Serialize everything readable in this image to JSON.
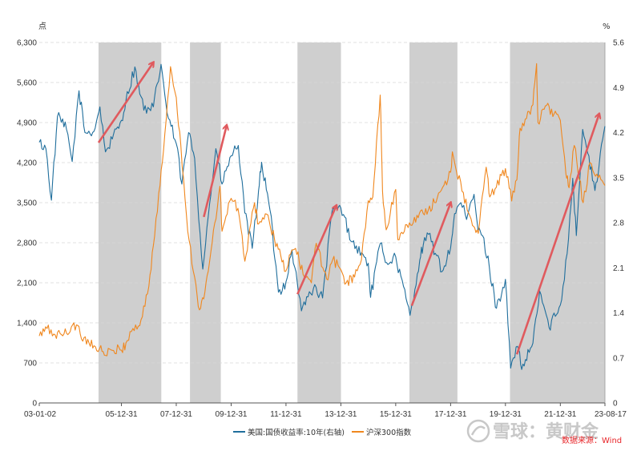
{
  "chart_data": {
    "type": "line",
    "title": "",
    "left_axis": {
      "unit": "点",
      "min": 0,
      "max": 6300,
      "ticks": [
        "0",
        "700",
        "1,400",
        "2,100",
        "2,800",
        "3,500",
        "4,200",
        "4,900",
        "5,600",
        "6,300"
      ]
    },
    "right_axis": {
      "unit": "%",
      "min": 0,
      "max": 5.6,
      "ticks": [
        "0",
        "0.7",
        "1.4",
        "2.1",
        "2.8",
        "3.5",
        "4.2",
        "4.9",
        "5.6"
      ]
    },
    "x_range": [
      "2003-01-02",
      "2023-08-17"
    ],
    "x_ticks": [
      {
        "label": "03-01-02",
        "date": "2003-01-02"
      },
      {
        "label": "05-12-31",
        "date": "2005-12-31"
      },
      {
        "label": "07-12-31",
        "date": "2007-12-31"
      },
      {
        "label": "09-12-31",
        "date": "2009-12-31"
      },
      {
        "label": "11-12-31",
        "date": "2011-12-31"
      },
      {
        "label": "13-12-31",
        "date": "2013-12-31"
      },
      {
        "label": "15-12-31",
        "date": "2015-12-31"
      },
      {
        "label": "17-12-31",
        "date": "2017-12-31"
      },
      {
        "label": "19-12-31",
        "date": "2019-12-31"
      },
      {
        "label": "21-12-31",
        "date": "2021-12-31"
      },
      {
        "label": "23-08-17",
        "date": "2023-08-17"
      }
    ],
    "grid": "horizontal-dashed",
    "legend_position": "bottom",
    "shaded_periods": [
      [
        "2005-03-01",
        "2007-06-15"
      ],
      [
        "2008-07-01",
        "2009-08-15"
      ],
      [
        "2012-06-01",
        "2014-01-01"
      ],
      [
        "2016-07-01",
        "2018-04-01"
      ],
      [
        "2020-03-01",
        "2023-08-17"
      ]
    ],
    "trend_arrows": [
      {
        "from": [
          "2005-03-01",
          4550
        ],
        "to": [
          "2007-03-01",
          5950
        ]
      },
      {
        "from": [
          "2009-01-01",
          3250
        ],
        "to": [
          "2009-11-01",
          4850
        ]
      },
      {
        "from": [
          "2012-06-01",
          1900
        ],
        "to": [
          "2013-11-01",
          3450
        ]
      },
      {
        "from": [
          "2016-08-01",
          1700
        ],
        "to": [
          "2018-01-01",
          3500
        ]
      },
      {
        "from": [
          "2020-06-01",
          850
        ],
        "to": [
          "2023-06-01",
          5050
        ]
      }
    ],
    "series": [
      {
        "name": "美国:国债收益率:10年(右轴)",
        "axis": "right",
        "color": "#1f6e9c",
        "points": [
          [
            "2003-01-02",
            4.05
          ],
          [
            "2003-04-01",
            3.95
          ],
          [
            "2003-06-13",
            3.15
          ],
          [
            "2003-09-01",
            4.45
          ],
          [
            "2003-12-31",
            4.25
          ],
          [
            "2004-03-15",
            3.75
          ],
          [
            "2004-06-14",
            4.85
          ],
          [
            "2004-09-01",
            4.2
          ],
          [
            "2004-12-31",
            4.22
          ],
          [
            "2005-03-20",
            4.6
          ],
          [
            "2005-06-01",
            3.9
          ],
          [
            "2005-09-01",
            4.1
          ],
          [
            "2005-12-31",
            4.39
          ],
          [
            "2006-03-01",
            4.7
          ],
          [
            "2006-06-28",
            5.22
          ],
          [
            "2006-09-01",
            4.8
          ],
          [
            "2006-12-01",
            4.5
          ],
          [
            "2007-03-01",
            4.6
          ],
          [
            "2007-06-12",
            5.26
          ],
          [
            "2007-09-01",
            4.5
          ],
          [
            "2007-12-31",
            4.03
          ],
          [
            "2008-03-15",
            3.4
          ],
          [
            "2008-06-13",
            4.2
          ],
          [
            "2008-09-01",
            3.8
          ],
          [
            "2008-12-18",
            2.08
          ],
          [
            "2009-03-01",
            2.9
          ],
          [
            "2009-06-10",
            3.95
          ],
          [
            "2009-09-01",
            3.4
          ],
          [
            "2009-12-31",
            3.84
          ],
          [
            "2010-04-05",
            4.0
          ],
          [
            "2010-06-30",
            2.95
          ],
          [
            "2010-10-08",
            2.4
          ],
          [
            "2010-12-31",
            3.3
          ],
          [
            "2011-02-09",
            3.74
          ],
          [
            "2011-06-01",
            3.0
          ],
          [
            "2011-09-22",
            1.72
          ],
          [
            "2011-12-31",
            1.88
          ],
          [
            "2012-03-20",
            2.38
          ],
          [
            "2012-07-24",
            1.43
          ],
          [
            "2012-10-01",
            1.65
          ],
          [
            "2012-12-31",
            1.78
          ],
          [
            "2013-05-01",
            1.63
          ],
          [
            "2013-09-05",
            2.98
          ],
          [
            "2013-12-31",
            3.03
          ],
          [
            "2014-06-01",
            2.5
          ],
          [
            "2014-12-31",
            2.17
          ],
          [
            "2015-01-30",
            1.64
          ],
          [
            "2015-06-10",
            2.48
          ],
          [
            "2015-09-01",
            2.18
          ],
          [
            "2015-12-31",
            2.27
          ],
          [
            "2016-07-08",
            1.36
          ],
          [
            "2016-11-15",
            2.22
          ],
          [
            "2016-12-31",
            2.45
          ],
          [
            "2017-03-13",
            2.62
          ],
          [
            "2017-09-07",
            2.04
          ],
          [
            "2017-12-31",
            2.41
          ],
          [
            "2018-02-21",
            2.94
          ],
          [
            "2018-05-17",
            3.11
          ],
          [
            "2018-08-01",
            2.85
          ],
          [
            "2018-11-08",
            3.24
          ],
          [
            "2018-12-31",
            2.69
          ],
          [
            "2019-03-01",
            2.6
          ],
          [
            "2019-06-01",
            2.1
          ],
          [
            "2019-09-03",
            1.47
          ],
          [
            "2019-12-31",
            1.92
          ],
          [
            "2020-03-09",
            0.54
          ],
          [
            "2020-06-08",
            0.88
          ],
          [
            "2020-08-04",
            0.52
          ],
          [
            "2020-12-31",
            0.93
          ],
          [
            "2021-03-31",
            1.74
          ],
          [
            "2021-08-03",
            1.17
          ],
          [
            "2021-12-31",
            1.52
          ],
          [
            "2022-03-31",
            2.32
          ],
          [
            "2022-06-14",
            3.49
          ],
          [
            "2022-08-01",
            2.6
          ],
          [
            "2022-10-24",
            4.25
          ],
          [
            "2022-12-31",
            3.88
          ],
          [
            "2023-04-06",
            3.3
          ],
          [
            "2023-06-01",
            3.7
          ],
          [
            "2023-08-17",
            4.3
          ]
        ]
      },
      {
        "name": "沪深300指数",
        "axis": "left",
        "color": "#f0871e",
        "points": [
          [
            "2003-01-02",
            1170
          ],
          [
            "2003-04-15",
            1300
          ],
          [
            "2003-08-01",
            1190
          ],
          [
            "2003-12-31",
            1220
          ],
          [
            "2004-04-07",
            1400
          ],
          [
            "2004-07-01",
            1200
          ],
          [
            "2004-12-31",
            1000
          ],
          [
            "2005-03-15",
            950
          ],
          [
            "2005-06-03",
            830
          ],
          [
            "2005-09-01",
            920
          ],
          [
            "2005-12-31",
            924
          ],
          [
            "2006-03-01",
            1050
          ],
          [
            "2006-06-01",
            1300
          ],
          [
            "2006-09-01",
            1350
          ],
          [
            "2006-12-31",
            2040
          ],
          [
            "2007-03-01",
            2750
          ],
          [
            "2007-05-29",
            3800
          ],
          [
            "2007-08-01",
            4700
          ],
          [
            "2007-10-16",
            5877
          ],
          [
            "2007-12-31",
            5338
          ],
          [
            "2008-03-01",
            4500
          ],
          [
            "2008-06-01",
            3000
          ],
          [
            "2008-09-01",
            2200
          ],
          [
            "2008-11-04",
            1627
          ],
          [
            "2008-12-31",
            1817
          ],
          [
            "2009-03-01",
            2300
          ],
          [
            "2009-08-04",
            3787
          ],
          [
            "2009-09-01",
            3000
          ],
          [
            "2009-12-31",
            3575
          ],
          [
            "2010-04-01",
            3400
          ],
          [
            "2010-07-02",
            2477
          ],
          [
            "2010-11-08",
            3500
          ],
          [
            "2010-12-31",
            3128
          ],
          [
            "2011-04-18",
            3300
          ],
          [
            "2011-08-01",
            2850
          ],
          [
            "2011-12-28",
            2300
          ],
          [
            "2012-03-01",
            2600
          ],
          [
            "2012-05-07",
            2700
          ],
          [
            "2012-09-01",
            2200
          ],
          [
            "2012-12-03",
            2100
          ],
          [
            "2013-02-06",
            2791
          ],
          [
            "2013-06-25",
            2166
          ],
          [
            "2013-09-12",
            2500
          ],
          [
            "2013-12-31",
            2330
          ],
          [
            "2014-03-12",
            2100
          ],
          [
            "2014-07-01",
            2200
          ],
          [
            "2014-10-01",
            2500
          ],
          [
            "2014-12-31",
            3533
          ],
          [
            "2015-03-01",
            3600
          ],
          [
            "2015-06-08",
            5380
          ],
          [
            "2015-07-08",
            3700
          ],
          [
            "2015-08-26",
            3025
          ],
          [
            "2015-12-31",
            3731
          ],
          [
            "2016-01-28",
            2853
          ],
          [
            "2016-07-01",
            3150
          ],
          [
            "2016-12-31",
            3310
          ],
          [
            "2017-06-01",
            3500
          ],
          [
            "2017-12-31",
            4030
          ],
          [
            "2018-01-24",
            4389
          ],
          [
            "2018-06-01",
            3700
          ],
          [
            "2018-10-18",
            3100
          ],
          [
            "2019-01-03",
            2964
          ],
          [
            "2019-04-19",
            4120
          ],
          [
            "2019-06-06",
            3600
          ],
          [
            "2019-12-31",
            4096
          ],
          [
            "2020-03-23",
            3530
          ],
          [
            "2020-06-01",
            3900
          ],
          [
            "2020-07-13",
            4800
          ],
          [
            "2020-12-31",
            5211
          ],
          [
            "2021-02-18",
            5930
          ],
          [
            "2021-03-09",
            4900
          ],
          [
            "2021-07-01",
            5200
          ],
          [
            "2021-12-31",
            4940
          ],
          [
            "2022-03-15",
            4000
          ],
          [
            "2022-04-26",
            3760
          ],
          [
            "2022-07-04",
            4500
          ],
          [
            "2022-10-31",
            3500
          ],
          [
            "2023-01-30",
            4200
          ],
          [
            "2023-05-01",
            4000
          ],
          [
            "2023-08-17",
            3800
          ]
        ]
      }
    ]
  },
  "watermark": "雪球：黄财金",
  "source": "数据来源：Wind"
}
